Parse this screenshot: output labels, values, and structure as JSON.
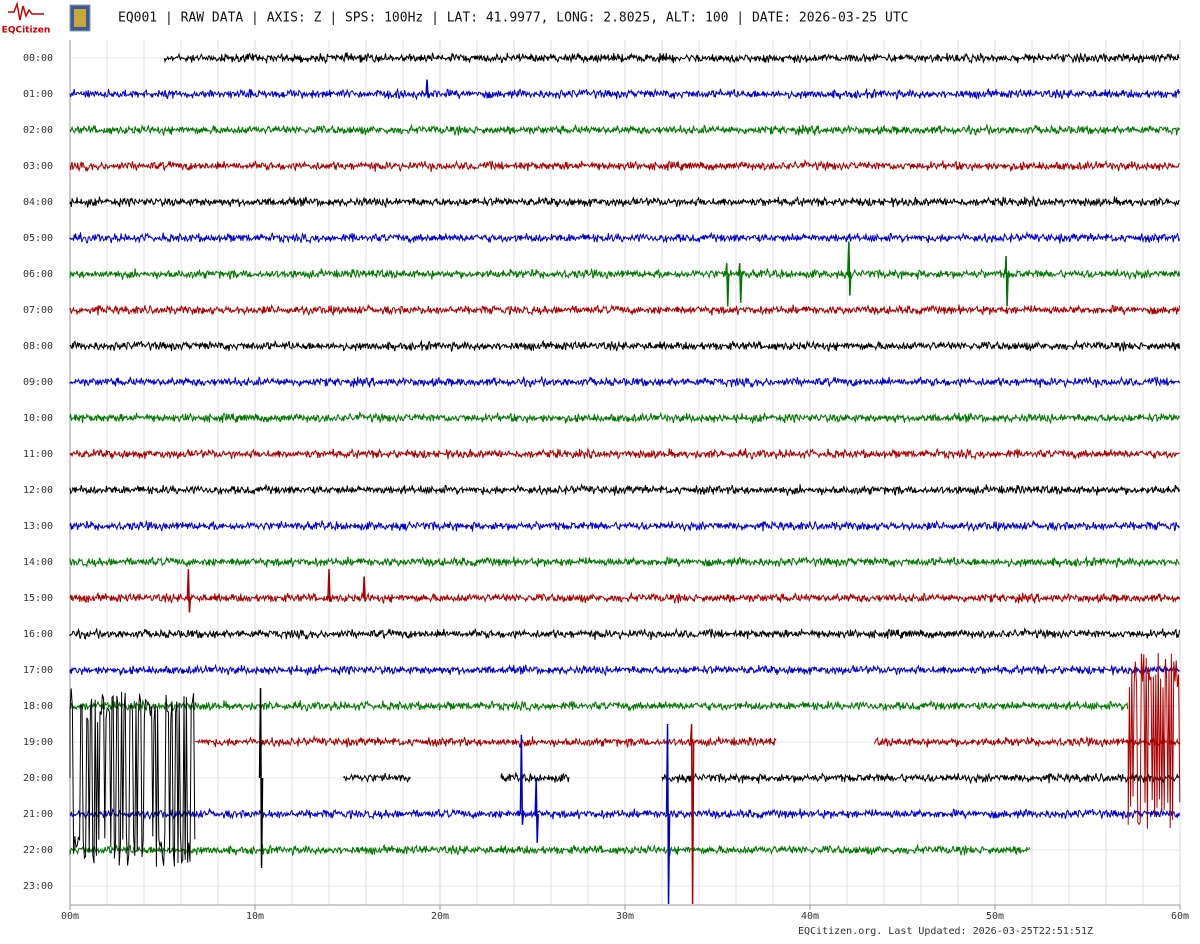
{
  "chart_data": {
    "type": "helicorder",
    "logo": "EQCitizen",
    "title": "EQ001 | RAW DATA | AXIS: Z | SPS: 100Hz | LAT: 41.9977, LONG: 2.8025, ALT: 100 | DATE: 2026-03-25 UTC",
    "footer": "EQCitizen.org. Last Updated: 2026-03-25T22:51:51Z",
    "xlim": [
      0,
      60
    ],
    "xticks": [
      {
        "value": 0,
        "label": "00m"
      },
      {
        "value": 10,
        "label": "10m"
      },
      {
        "value": 20,
        "label": "20m"
      },
      {
        "value": 30,
        "label": "30m"
      },
      {
        "value": 40,
        "label": "40m"
      },
      {
        "value": 50,
        "label": "50m"
      },
      {
        "value": 60,
        "label": "60m"
      }
    ],
    "xminor": [
      2,
      4,
      6,
      8,
      12,
      14,
      16,
      18,
      22,
      24,
      26,
      28,
      32,
      34,
      36,
      38,
      42,
      44,
      46,
      48,
      52,
      54,
      56,
      58
    ],
    "grid": true,
    "noise": 0.08,
    "rows": [
      {
        "label": "00:00",
        "color": "#000000",
        "segments": [
          [
            5.1,
            60
          ]
        ]
      },
      {
        "label": "01:00",
        "color": "#0000cc",
        "segments": [
          [
            0,
            60
          ]
        ]
      },
      {
        "label": "02:00",
        "color": "#007700",
        "segments": [
          [
            0,
            60
          ]
        ]
      },
      {
        "label": "03:00",
        "color": "#aa0000",
        "segments": [
          [
            0,
            60
          ]
        ]
      },
      {
        "label": "04:00",
        "color": "#000000",
        "segments": [
          [
            0,
            60
          ]
        ]
      },
      {
        "label": "05:00",
        "color": "#0000cc",
        "segments": [
          [
            0,
            60
          ]
        ]
      },
      {
        "label": "06:00",
        "color": "#007700",
        "segments": [
          [
            0,
            60
          ]
        ]
      },
      {
        "label": "07:00",
        "color": "#aa0000",
        "segments": [
          [
            0,
            60
          ]
        ]
      },
      {
        "label": "08:00",
        "color": "#000000",
        "segments": [
          [
            0,
            60
          ]
        ]
      },
      {
        "label": "09:00",
        "color": "#0000cc",
        "segments": [
          [
            0,
            60
          ]
        ]
      },
      {
        "label": "10:00",
        "color": "#007700",
        "segments": [
          [
            0,
            60
          ]
        ]
      },
      {
        "label": "11:00",
        "color": "#aa0000",
        "segments": [
          [
            0,
            60
          ]
        ]
      },
      {
        "label": "12:00",
        "color": "#000000",
        "segments": [
          [
            0,
            60
          ]
        ]
      },
      {
        "label": "13:00",
        "color": "#0000cc",
        "segments": [
          [
            0,
            60
          ]
        ]
      },
      {
        "label": "14:00",
        "color": "#007700",
        "segments": [
          [
            0,
            60
          ]
        ]
      },
      {
        "label": "15:00",
        "color": "#aa0000",
        "segments": [
          [
            0,
            60
          ]
        ]
      },
      {
        "label": "16:00",
        "color": "#000000",
        "segments": [
          [
            0,
            60
          ]
        ]
      },
      {
        "label": "17:00",
        "color": "#0000cc",
        "segments": [
          [
            0,
            60
          ]
        ]
      },
      {
        "label": "18:00",
        "color": "#007700",
        "segments": [
          [
            0,
            57.2
          ]
        ]
      },
      {
        "label": "19:00",
        "color": "#aa0000",
        "segments": [
          [
            6.8,
            38.2
          ],
          [
            43.5,
            60
          ]
        ]
      },
      {
        "label": "20:00",
        "color": "#000000",
        "segments": [
          [
            14.8,
            18.4
          ],
          [
            23.3,
            27
          ],
          [
            32,
            60
          ]
        ]
      },
      {
        "label": "21:00",
        "color": "#0000cc",
        "segments": [
          [
            0,
            60
          ]
        ]
      },
      {
        "label": "22:00",
        "color": "#007700",
        "segments": [
          [
            0,
            51.9
          ]
        ]
      },
      {
        "label": "23:00",
        "color": "#000000",
        "segments": []
      }
    ],
    "bursts": [
      {
        "row": 20,
        "start": 0,
        "end": 6.8,
        "amplitude": 2.5
      },
      {
        "row": 19,
        "start": 57.2,
        "end": 60,
        "amplitude": 2.5
      }
    ],
    "spikes": [
      {
        "row": 1,
        "minute": 19.3,
        "up": 0.4,
        "down": 0.1
      },
      {
        "row": 6,
        "minute": 35.5,
        "up": 0.3,
        "down": 0.9
      },
      {
        "row": 6,
        "minute": 36.2,
        "up": 0.3,
        "down": 0.8
      },
      {
        "row": 6,
        "minute": 42.1,
        "up": 0.9,
        "down": 0.6
      },
      {
        "row": 6,
        "minute": 50.6,
        "up": 0.5,
        "down": 0.9
      },
      {
        "row": 15,
        "minute": 6.4,
        "up": 0.8,
        "down": 0.4
      },
      {
        "row": 15,
        "minute": 14,
        "up": 0.8,
        "down": 0.1
      },
      {
        "row": 15,
        "minute": 15.9,
        "up": 0.6,
        "down": 0.1
      },
      {
        "row": 20,
        "minute": 10.3,
        "up": 2.5,
        "down": 2.5
      },
      {
        "row": 21,
        "minute": 24.4,
        "up": 2.2,
        "down": 0.3
      },
      {
        "row": 21,
        "minute": 25.2,
        "up": 1,
        "down": 0.8
      },
      {
        "row": 21,
        "minute": 32.3,
        "up": 2.5,
        "down": 2.5
      },
      {
        "row": 19,
        "minute": 33.6,
        "up": 0.5,
        "down": 4.5
      }
    ]
  }
}
